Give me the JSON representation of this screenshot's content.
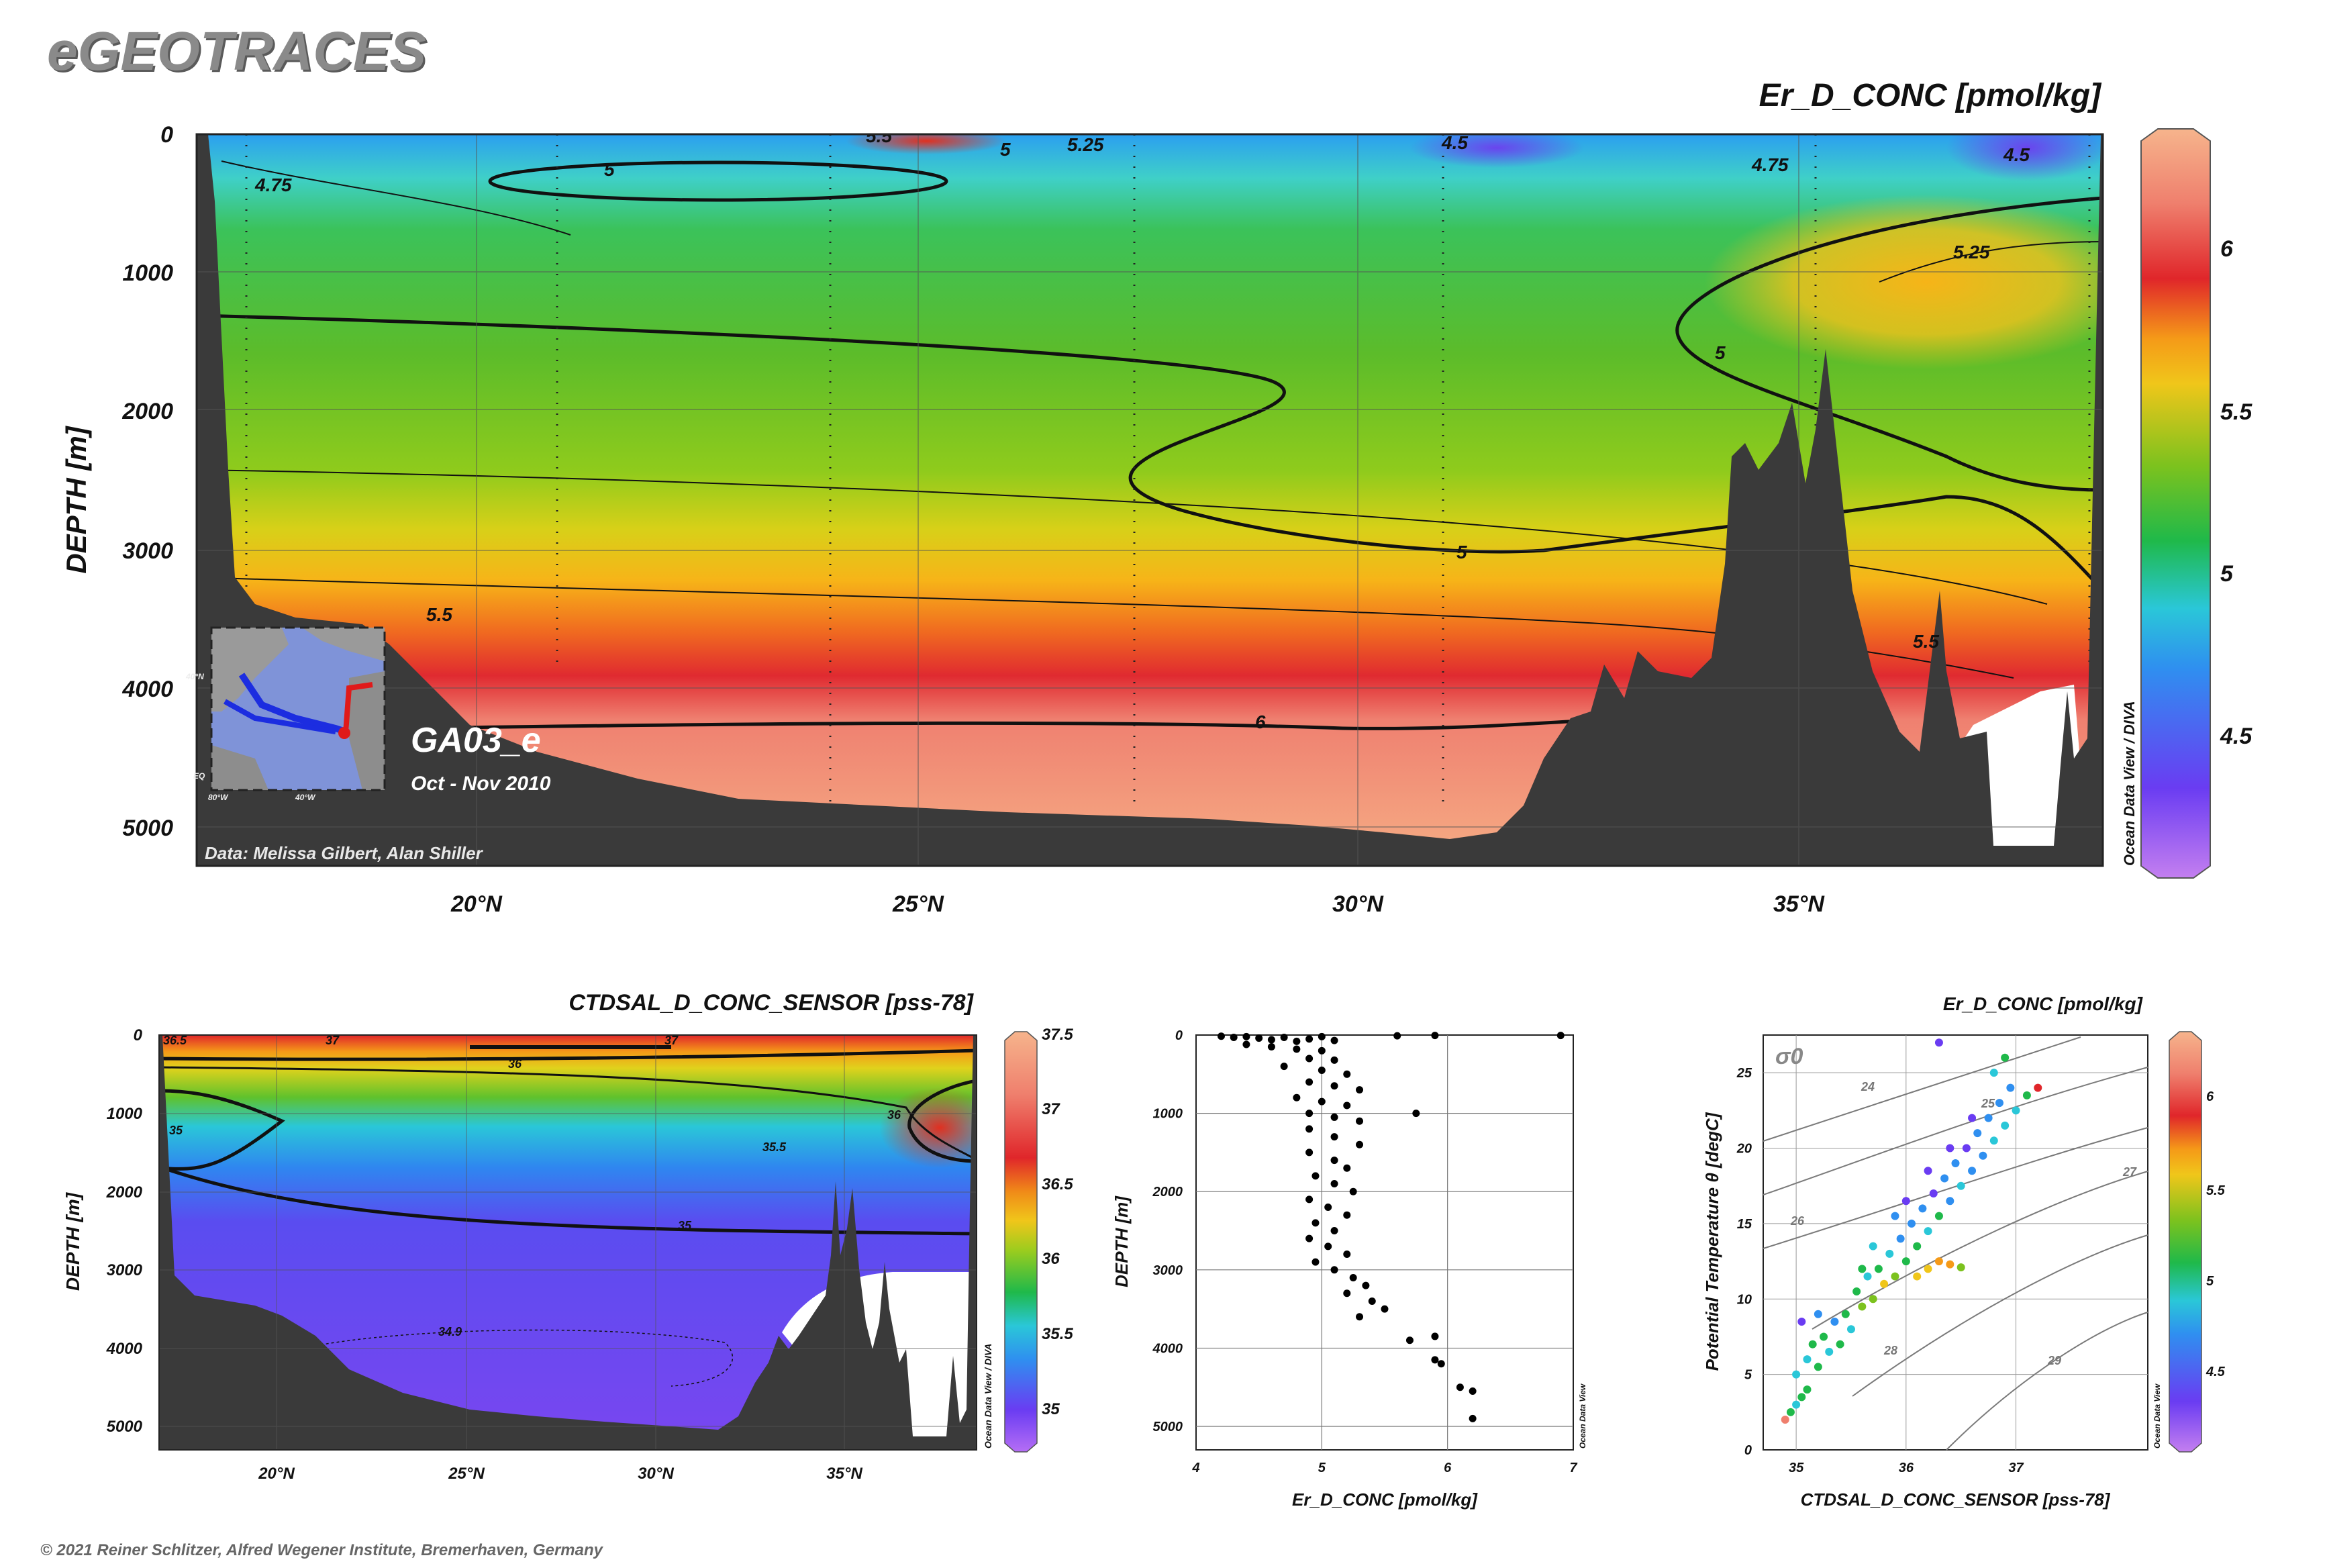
{
  "header": {
    "brand": "eGEOTRACES",
    "copyright": "© 2021 Reiner Schlitzer, Alfred Wegener Institute, Bremerhaven, Germany"
  },
  "colors": {
    "terrain": "#3a3a3a",
    "accent_track": "#e01a1a",
    "track_blue": "#1c2de0",
    "background": "#ffffff"
  },
  "chart_data": [
    {
      "type": "heatmap",
      "title": "Er_D_CONC [pmol/kg]",
      "ylabel": "DEPTH [m]",
      "y_ticks": [
        "0",
        "1000",
        "2000",
        "3000",
        "4000",
        "5000"
      ],
      "x_ticks": [
        "20°N",
        "25°N",
        "30°N",
        "35°N"
      ],
      "ylim": [
        5300,
        0
      ],
      "xlim": [
        16.8,
        38.5
      ],
      "y_reversed": true,
      "colorbar_ticks": [
        "6",
        "5.5",
        "5",
        "4.5"
      ],
      "colorbar_range": [
        4.1,
        6.4
      ],
      "contour_labels": [
        "5.5",
        "5",
        "5.25",
        "4.75",
        "5",
        "4.5",
        "4.75",
        "4.5",
        "5.25",
        "5",
        "5.5",
        "5.5",
        "6",
        "5"
      ],
      "inset_label": "40°N",
      "inset_ticks": [
        "80°W",
        "40°W",
        "EQ"
      ],
      "section_name": "GA03_e",
      "section_dates": "Oct - Nov 2010",
      "credit": "Data: Melissa Gilbert, Alan Shiller",
      "odv_credit": "Ocean Data View / DIVA"
    },
    {
      "type": "heatmap",
      "title": "CTDSAL_D_CONC_SENSOR [pss-78]",
      "ylabel": "DEPTH [m]",
      "y_ticks": [
        "0",
        "1000",
        "2000",
        "3000",
        "4000",
        "5000"
      ],
      "x_ticks": [
        "20°N",
        "25°N",
        "30°N",
        "35°N"
      ],
      "ylim": [
        5300,
        0
      ],
      "xlim": [
        16.8,
        38.5
      ],
      "colorbar_ticks": [
        "37.5",
        "37",
        "36.5",
        "36",
        "35.5",
        "35"
      ],
      "colorbar_range": [
        34.7,
        37.5
      ],
      "contour_labels": [
        "36.5",
        "37",
        "37",
        "36",
        "36",
        "35",
        "35.5",
        "35",
        "34.9"
      ],
      "odv_credit": "Ocean Data View / DIVA"
    },
    {
      "type": "scatter",
      "xlabel": "Er_D_CONC [pmol/kg]",
      "ylabel": "DEPTH [m]",
      "x_ticks": [
        "4",
        "5",
        "6",
        "7"
      ],
      "y_ticks": [
        "0",
        "1000",
        "2000",
        "3000",
        "4000",
        "5000"
      ],
      "xlim": [
        4,
        7
      ],
      "ylim": [
        5300,
        0
      ],
      "odv_credit": "Ocean Data View",
      "points": [
        [
          4.2,
          15
        ],
        [
          4.3,
          30
        ],
        [
          4.4,
          20
        ],
        [
          4.5,
          40
        ],
        [
          4.6,
          60
        ],
        [
          4.7,
          30
        ],
        [
          4.8,
          80
        ],
        [
          4.9,
          50
        ],
        [
          5.0,
          20
        ],
        [
          5.1,
          70
        ],
        [
          5.6,
          10
        ],
        [
          5.9,
          5
        ],
        [
          6.9,
          5
        ],
        [
          4.4,
          120
        ],
        [
          4.6,
          150
        ],
        [
          4.8,
          180
        ],
        [
          5.0,
          200
        ],
        [
          4.9,
          300
        ],
        [
          5.1,
          320
        ],
        [
          4.7,
          400
        ],
        [
          5.0,
          450
        ],
        [
          5.2,
          500
        ],
        [
          4.9,
          600
        ],
        [
          5.1,
          650
        ],
        [
          5.3,
          700
        ],
        [
          4.8,
          800
        ],
        [
          5.0,
          850
        ],
        [
          5.2,
          900
        ],
        [
          4.9,
          1000
        ],
        [
          5.1,
          1050
        ],
        [
          5.3,
          1100
        ],
        [
          5.75,
          1000
        ],
        [
          4.9,
          1200
        ],
        [
          5.1,
          1300
        ],
        [
          5.3,
          1400
        ],
        [
          4.9,
          1500
        ],
        [
          5.1,
          1600
        ],
        [
          5.2,
          1700
        ],
        [
          4.95,
          1800
        ],
        [
          5.1,
          1900
        ],
        [
          5.25,
          2000
        ],
        [
          4.9,
          2100
        ],
        [
          5.05,
          2200
        ],
        [
          5.2,
          2300
        ],
        [
          4.95,
          2400
        ],
        [
          5.1,
          2500
        ],
        [
          4.9,
          2600
        ],
        [
          5.05,
          2700
        ],
        [
          5.2,
          2800
        ],
        [
          4.95,
          2900
        ],
        [
          5.1,
          3000
        ],
        [
          5.25,
          3100
        ],
        [
          5.35,
          3200
        ],
        [
          5.2,
          3300
        ],
        [
          5.4,
          3400
        ],
        [
          5.5,
          3500
        ],
        [
          5.3,
          3600
        ],
        [
          5.9,
          3850
        ],
        [
          5.7,
          3900
        ],
        [
          5.9,
          4150
        ],
        [
          5.95,
          4200
        ],
        [
          6.1,
          4500
        ],
        [
          6.2,
          4550
        ],
        [
          6.2,
          4900
        ]
      ]
    },
    {
      "type": "scatter",
      "title": "Er_D_CONC [pmol/kg]",
      "xlabel": "CTDSAL_D_CONC_SENSOR [pss-78]",
      "ylabel": "Potential Temperature θ [degC]",
      "x_ticks": [
        "35",
        "36",
        "37"
      ],
      "y_ticks": [
        "0",
        "5",
        "10",
        "15",
        "20",
        "25"
      ],
      "xlim": [
        34.7,
        38.2
      ],
      "ylim": [
        0,
        27.5
      ],
      "sigma_label": "σ0",
      "isopycnal_labels": [
        "24",
        "25",
        "26",
        "27",
        "28",
        "29"
      ],
      "colorbar_ticks": [
        "6",
        "5.5",
        "5",
        "4.5"
      ],
      "colorbar_range": [
        4.1,
        6.4
      ],
      "odv_credit": "Ocean Data View",
      "points": [
        [
          34.9,
          2.0,
          6.2
        ],
        [
          34.95,
          2.5,
          5.0
        ],
        [
          35.0,
          3.0,
          4.9
        ],
        [
          35.05,
          3.5,
          5.0
        ],
        [
          35.1,
          4.0,
          5.1
        ],
        [
          35.0,
          5.0,
          4.9
        ],
        [
          35.1,
          6.0,
          4.8
        ],
        [
          35.2,
          5.5,
          5.0
        ],
        [
          35.3,
          6.5,
          4.9
        ],
        [
          35.25,
          7.5,
          5.0
        ],
        [
          35.4,
          7.0,
          5.1
        ],
        [
          35.35,
          8.5,
          4.6
        ],
        [
          35.5,
          8.0,
          4.9
        ],
        [
          35.45,
          9.0,
          5.0
        ],
        [
          35.6,
          9.5,
          5.2
        ],
        [
          35.55,
          10.5,
          5.0
        ],
        [
          35.7,
          10.0,
          5.3
        ],
        [
          35.65,
          11.5,
          4.9
        ],
        [
          35.8,
          11.0,
          5.4
        ],
        [
          35.75,
          12.0,
          5.0
        ],
        [
          35.9,
          11.5,
          5.3
        ],
        [
          35.85,
          13.0,
          4.8
        ],
        [
          36.0,
          12.5,
          5.0
        ],
        [
          35.95,
          14.0,
          4.7
        ],
        [
          36.1,
          13.5,
          5.0
        ],
        [
          36.05,
          15.0,
          4.6
        ],
        [
          36.2,
          14.5,
          4.8
        ],
        [
          36.15,
          16.0,
          4.7
        ],
        [
          36.3,
          15.5,
          5.0
        ],
        [
          36.25,
          17.0,
          4.5
        ],
        [
          36.4,
          16.5,
          4.7
        ],
        [
          36.35,
          18.0,
          4.6
        ],
        [
          36.5,
          17.5,
          4.8
        ],
        [
          36.45,
          19.0,
          4.6
        ],
        [
          36.6,
          18.5,
          4.7
        ],
        [
          36.55,
          20.0,
          4.5
        ],
        [
          36.7,
          19.5,
          4.7
        ],
        [
          36.65,
          21.0,
          4.6
        ],
        [
          36.8,
          20.5,
          4.8
        ],
        [
          36.75,
          22.0,
          4.6
        ],
        [
          36.9,
          21.5,
          4.9
        ],
        [
          36.85,
          23.0,
          4.7
        ],
        [
          37.0,
          22.5,
          4.9
        ],
        [
          36.95,
          24.0,
          4.6
        ],
        [
          37.2,
          24.0,
          5.9
        ],
        [
          37.1,
          23.5,
          5.1
        ],
        [
          36.2,
          12.0,
          5.4
        ],
        [
          36.3,
          12.5,
          5.5
        ],
        [
          36.4,
          12.3,
          5.6
        ],
        [
          36.1,
          11.5,
          5.4
        ],
        [
          35.05,
          8.5,
          4.5
        ],
        [
          35.15,
          7.0,
          5.0
        ],
        [
          35.2,
          9.0,
          4.7
        ],
        [
          36.5,
          12.1,
          5.2
        ],
        [
          36.8,
          25.0,
          4.8
        ],
        [
          36.9,
          26.0,
          5.0
        ],
        [
          36.3,
          27.0,
          4.3
        ],
        [
          35.6,
          12.0,
          5.0
        ],
        [
          35.7,
          13.5,
          4.8
        ],
        [
          35.9,
          15.5,
          4.6
        ],
        [
          36.0,
          16.5,
          4.5
        ],
        [
          36.2,
          18.5,
          4.4
        ],
        [
          36.4,
          20.0,
          4.4
        ],
        [
          36.6,
          22.0,
          4.5
        ]
      ]
    }
  ]
}
